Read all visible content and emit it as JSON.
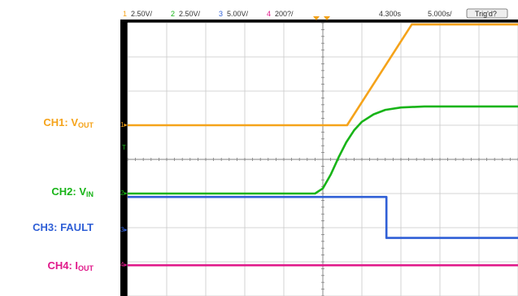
{
  "labels": {
    "ch1": {
      "prefix": "CH1: V",
      "sub": "OUT",
      "color": "#f5a31a"
    },
    "ch2": {
      "prefix": "CH2: V",
      "sub": "IN",
      "color": "#18b418"
    },
    "ch3": {
      "prefix": "CH3: FAULT",
      "sub": "",
      "color": "#2f5fd6"
    },
    "ch4": {
      "prefix": "CH4: I",
      "sub": "OUT",
      "color": "#e0198a"
    }
  },
  "header": {
    "ch1_num": "1",
    "ch1_scale": "2.50V/",
    "ch2_num": "2",
    "ch2_scale": "2.50V/",
    "ch3_num": "3",
    "ch3_scale": "5.00V/",
    "ch4_num": "4",
    "ch4_scale": "200?/",
    "time_pos": "4.300s",
    "time_div": "5.000s/",
    "trigger": "Trig'd?"
  },
  "chart_data": {
    "type": "line",
    "x_divisions": 10,
    "y_divisions": 8,
    "series": [
      {
        "name": "CH1: VOUT",
        "color": "#f5a31a",
        "x": [
          0,
          5.62,
          7.28,
          10
        ],
        "y": [
          -3.0,
          -3.0,
          -0.05,
          -0.05
        ]
      },
      {
        "name": "CH2: VIN",
        "color": "#18b418",
        "x": [
          0,
          4.8,
          5.0,
          5.2,
          5.4,
          5.6,
          5.8,
          6.0,
          6.3,
          6.6,
          7.0,
          7.6,
          10
        ],
        "y": [
          -5.0,
          -5.0,
          -4.85,
          -4.45,
          -3.95,
          -3.5,
          -3.15,
          -2.9,
          -2.68,
          -2.55,
          -2.48,
          -2.45,
          -2.45
        ]
      },
      {
        "name": "CH3: FAULT",
        "color": "#2f5fd6",
        "x": [
          0,
          6.63,
          6.63,
          10
        ],
        "y": [
          -5.1,
          -5.1,
          -6.3,
          -6.3
        ]
      },
      {
        "name": "CH4: IOUT",
        "color": "#e0198a",
        "x": [
          0,
          10
        ],
        "y": [
          -7.1,
          -7.1
        ]
      }
    ]
  }
}
